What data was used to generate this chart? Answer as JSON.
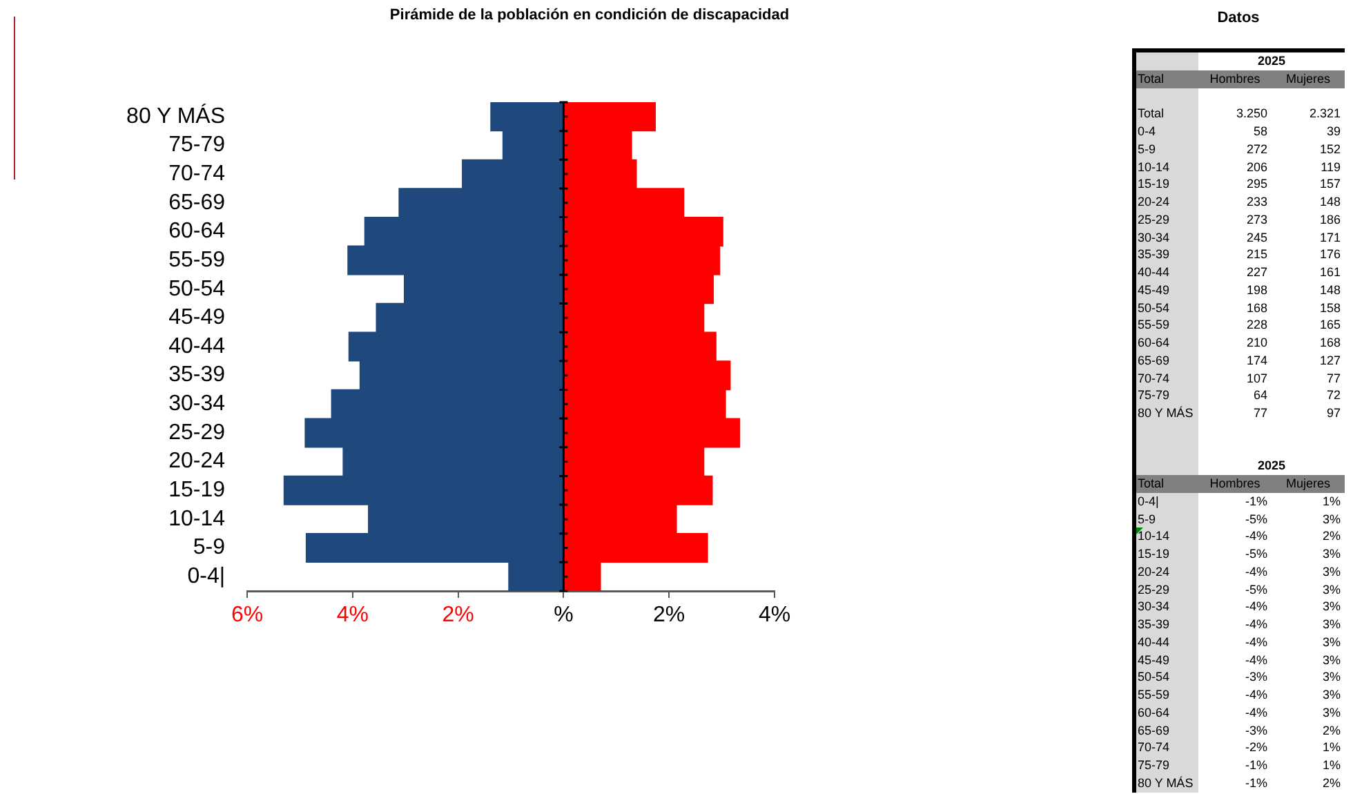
{
  "chart_data": [
    {
      "type": "bar",
      "title": "Pirámide de la población en condición de discapacidad",
      "orientation": "horizontal",
      "stacked": true,
      "categories": [
        "80 Y MÁS",
        "75-79",
        "70-74",
        "65-69",
        "60-64",
        "55-59",
        "50-54",
        "45-49",
        "40-44",
        "35-39",
        "30-34",
        "25-29",
        "20-24",
        "15-19",
        "10-14",
        "5-9",
        "0-4|"
      ],
      "series": [
        {
          "color": "#1f497d",
          "values": [
            -1.38,
            -1.15,
            -1.92,
            -3.12,
            -3.77,
            -4.09,
            -3.02,
            -3.55,
            -4.07,
            -3.86,
            -4.4,
            -4.9,
            -4.18,
            -5.3,
            -3.7,
            -4.88,
            -1.04
          ]
        },
        {
          "color": "#ff0000",
          "values": [
            1.74,
            1.29,
            1.38,
            2.28,
            3.02,
            2.96,
            2.84,
            2.66,
            2.89,
            3.16,
            3.07,
            3.34,
            2.66,
            2.82,
            2.14,
            2.73,
            0.7
          ]
        }
      ],
      "xlim": [
        -6,
        4
      ],
      "xticks": [
        {
          "value": -6,
          "label": "6%"
        },
        {
          "value": -4,
          "label": "4%"
        },
        {
          "value": -2,
          "label": "2%"
        },
        {
          "value": 0,
          "label": "%"
        },
        {
          "value": 2,
          "label": "2%"
        },
        {
          "value": 4,
          "label": "4%"
        }
      ]
    },
    {
      "type": "other",
      "title": "Datos",
      "subtitle": "2025",
      "ylabel": "Total",
      "categories": [
        "Total",
        "0-4",
        "5-9",
        "10-14",
        "15-19",
        "20-24",
        "25-29",
        "30-34",
        "35-39",
        "40-44",
        "45-49",
        "50-54",
        "55-59",
        "60-64",
        "65-69",
        "70-74",
        "75-79",
        "80 Y MÁS"
      ],
      "series": [
        {
          "name": "Hombres",
          "values": [
            3250,
            58,
            272,
            206,
            295,
            233,
            273,
            245,
            215,
            227,
            198,
            168,
            228,
            210,
            174,
            107,
            64,
            77
          ],
          "value_labels": [
            "3.250",
            "58",
            "272",
            "206",
            "295",
            "233",
            "273",
            "245",
            "215",
            "227",
            "198",
            "168",
            "228",
            "210",
            "174",
            "107",
            "64",
            "77"
          ]
        },
        {
          "name": "Mujeres",
          "values": [
            2321,
            39,
            152,
            119,
            157,
            148,
            186,
            171,
            176,
            161,
            148,
            158,
            165,
            168,
            127,
            77,
            72,
            97
          ],
          "value_labels": [
            "2.321",
            "39",
            "152",
            "119",
            "157",
            "148",
            "186",
            "171",
            "176",
            "161",
            "148",
            "158",
            "165",
            "168",
            "127",
            "77",
            "72",
            "97"
          ]
        }
      ]
    },
    {
      "type": "other",
      "subtitle": "2025",
      "ylabel": "Total",
      "categories": [
        "0-4|",
        "5-9",
        "10-14",
        "15-19",
        "20-24",
        "25-29",
        "30-34",
        "35-39",
        "40-44",
        "45-49",
        "50-54",
        "55-59",
        "60-64",
        "65-69",
        "70-74",
        "75-79",
        "80 Y MÁS"
      ],
      "series": [
        {
          "name": "Hombres",
          "values": [
            -1,
            -5,
            -4,
            -5,
            -4,
            -5,
            -4,
            -4,
            -4,
            -4,
            -3,
            -4,
            -4,
            -3,
            -2,
            -1,
            -1
          ],
          "value_labels": [
            "-1%",
            "-5%",
            "-4%",
            "-5%",
            "-4%",
            "-5%",
            "-4%",
            "-4%",
            "-4%",
            "-4%",
            "-3%",
            "-4%",
            "-4%",
            "-3%",
            "-2%",
            "-1%",
            "-1%"
          ]
        },
        {
          "name": "Mujeres",
          "values": [
            1,
            3,
            2,
            3,
            3,
            3,
            3,
            3,
            3,
            3,
            3,
            3,
            3,
            2,
            1,
            1,
            2
          ],
          "value_labels": [
            "1%",
            "3%",
            "2%",
            "3%",
            "3%",
            "3%",
            "3%",
            "3%",
            "3%",
            "3%",
            "3%",
            "3%",
            "3%",
            "2%",
            "1%",
            "1%",
            "2%"
          ]
        }
      ]
    }
  ]
}
